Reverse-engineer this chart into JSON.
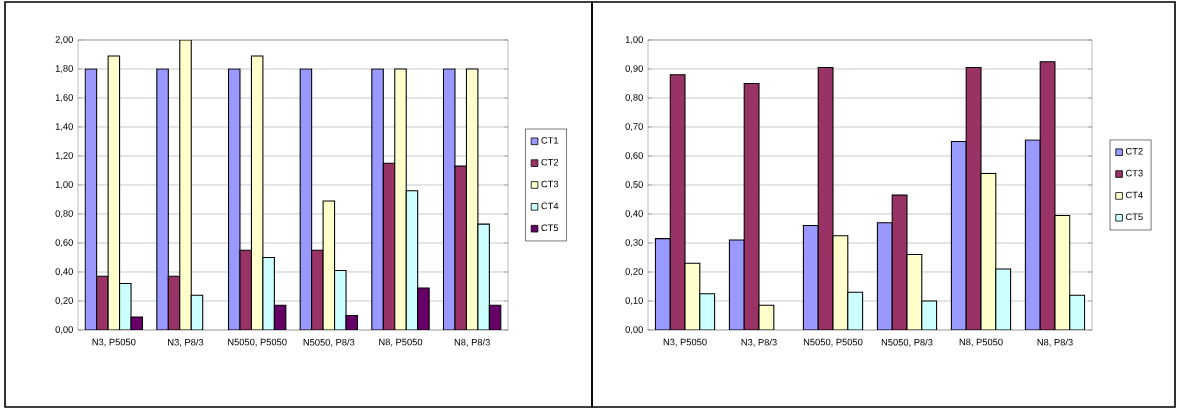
{
  "chart_data": [
    {
      "type": "bar",
      "categories": [
        "N3, P5050",
        "N3, P8/3",
        "N5050, P5050",
        "N5050, P8/3",
        "N8, P5050",
        "N8, P8/3"
      ],
      "series": [
        {
          "name": "CT1",
          "color": "#9999ff",
          "values": [
            1.8,
            1.8,
            1.8,
            1.8,
            1.8,
            1.8
          ]
        },
        {
          "name": "CT2",
          "color": "#993366",
          "values": [
            0.37,
            0.37,
            0.55,
            0.55,
            1.15,
            1.13
          ]
        },
        {
          "name": "CT3",
          "color": "#ffffcc",
          "values": [
            1.89,
            2.0,
            1.89,
            0.89,
            1.8,
            1.8
          ]
        },
        {
          "name": "CT4",
          "color": "#ccffff",
          "values": [
            0.32,
            0.24,
            0.5,
            0.41,
            0.96,
            0.73
          ]
        },
        {
          "name": "CT5",
          "color": "#660066",
          "values": [
            0.09,
            null,
            0.17,
            0.1,
            0.29,
            0.17
          ]
        }
      ],
      "ylim": [
        0,
        2
      ],
      "yticks": [
        {
          "value": 0,
          "label": "0,00"
        },
        {
          "value": 0.2,
          "label": "0,20"
        },
        {
          "value": 0.4,
          "label": "0,40"
        },
        {
          "value": 0.6,
          "label": "0,60"
        },
        {
          "value": 0.8,
          "label": "0,80"
        },
        {
          "value": 1.0,
          "label": "1,00"
        },
        {
          "value": 1.2,
          "label": "1,20"
        },
        {
          "value": 1.4,
          "label": "1,40"
        },
        {
          "value": 1.6,
          "label": "1,60"
        },
        {
          "value": 1.8,
          "label": "1,80"
        },
        {
          "value": 2.0,
          "label": "2,00"
        }
      ],
      "grid": "y",
      "legend": "right"
    },
    {
      "type": "bar",
      "categories": [
        "N3, P5050",
        "N3, P8/3",
        "N5050, P5050",
        "N5050, P8/3",
        "N8, P5050",
        "N8, P8/3"
      ],
      "series": [
        {
          "name": "CT2",
          "color": "#9999ff",
          "values": [
            0.315,
            0.31,
            0.36,
            0.37,
            0.65,
            0.655
          ]
        },
        {
          "name": "CT3",
          "color": "#993366",
          "values": [
            0.88,
            0.85,
            0.905,
            0.465,
            0.905,
            0.925
          ]
        },
        {
          "name": "CT4",
          "color": "#ffffcc",
          "values": [
            0.23,
            0.085,
            0.325,
            0.26,
            0.54,
            0.395
          ]
        },
        {
          "name": "CT5",
          "color": "#ccffff",
          "values": [
            0.125,
            null,
            0.13,
            0.1,
            0.21,
            0.12
          ]
        }
      ],
      "ylim": [
        0,
        1
      ],
      "yticks": [
        {
          "value": 0,
          "label": "0,00"
        },
        {
          "value": 0.1,
          "label": "0,10"
        },
        {
          "value": 0.2,
          "label": "0,20"
        },
        {
          "value": 0.3,
          "label": "0,30"
        },
        {
          "value": 0.4,
          "label": "0,40"
        },
        {
          "value": 0.5,
          "label": "0,50"
        },
        {
          "value": 0.6,
          "label": "0,60"
        },
        {
          "value": 0.7,
          "label": "0,70"
        },
        {
          "value": 0.8,
          "label": "0,80"
        },
        {
          "value": 0.9,
          "label": "0,90"
        },
        {
          "value": 1.0,
          "label": "1,00"
        }
      ],
      "grid": "y",
      "legend": "right"
    }
  ]
}
